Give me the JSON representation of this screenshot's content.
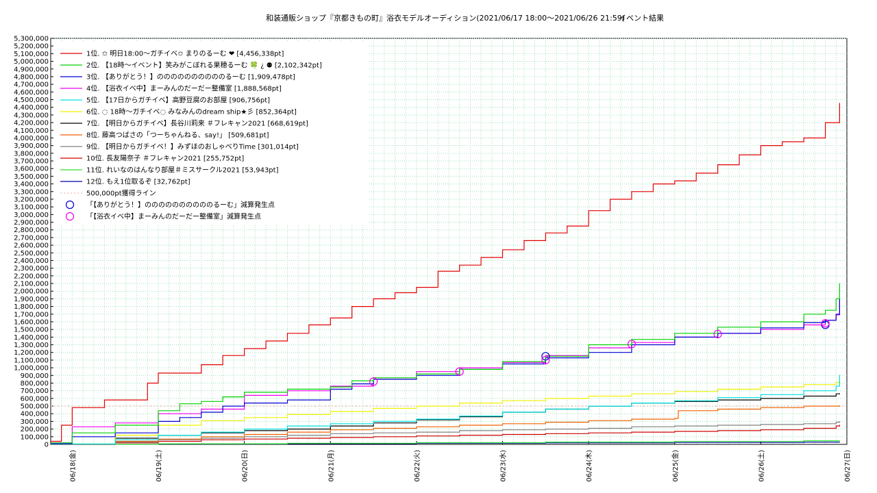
{
  "chart_data": {
    "type": "line",
    "title": "和装通販ショップ『京都きもの町』浴衣モデルオーディション(2021/06/17 18:00～2021/06/26 21:59)",
    "subtitle": "イベント結果",
    "xlabel": "",
    "ylabel": "",
    "ylim": [
      0,
      5300000
    ],
    "yticks": [
      "0",
      "100,000",
      "200,000",
      "300,000",
      "400,000",
      "500,000",
      "600,000",
      "700,000",
      "800,000",
      "900,000",
      "1,000,000",
      "1,100,000",
      "1,200,000",
      "1,300,000",
      "1,400,000",
      "1,500,000",
      "1,600,000",
      "1,700,000",
      "1,800,000",
      "1,900,000",
      "2,000,000",
      "2,100,000",
      "2,200,000",
      "2,300,000",
      "2,400,000",
      "2,500,000",
      "2,600,000",
      "2,700,000",
      "2,800,000",
      "2,900,000",
      "3,000,000",
      "3,100,000",
      "3,200,000",
      "3,300,000",
      "3,400,000",
      "3,500,000",
      "3,600,000",
      "3,700,000",
      "3,800,000",
      "3,900,000",
      "4,000,000",
      "4,100,000",
      "4,200,000",
      "4,300,000",
      "4,400,000",
      "4,500,000",
      "4,600,000",
      "4,700,000",
      "4,800,000",
      "4,900,000",
      "5,000,000",
      "5,100,000",
      "5,200,000",
      "5,300,000"
    ],
    "xlim": [
      "2021-06-17 18:00",
      "2021-06-27 00:00"
    ],
    "xticks": [
      "06/18(金)",
      "06/19(土)",
      "06/20(日)",
      "06/21(月)",
      "06/22(火)",
      "06/23(水)",
      "06/24(木)",
      "06/25(金)",
      "06/26(土)",
      "06/27(日)"
    ],
    "grid": true,
    "legend_position": "top-left",
    "series": [
      {
        "name": "1位. ✩ 明日18:00～ガチイベ✩ まりのるーむ ❤ [4,456,338pt]",
        "color": "#e00000",
        "x": [
          "06/17 18:00",
          "06/17 21:00",
          "06/18 00:00",
          "06/18 06:00",
          "06/18 09:00",
          "06/18 15:00",
          "06/18 21:00",
          "06/19 00:00",
          "06/19 06:00",
          "06/19 12:00",
          "06/19 18:00",
          "06/20 00:00",
          "06/20 06:00",
          "06/20 12:00",
          "06/20 18:00",
          "06/21 00:00",
          "06/21 06:00",
          "06/21 12:00",
          "06/21 18:00",
          "06/22 00:00",
          "06/22 06:00",
          "06/22 12:00",
          "06/22 18:00",
          "06/23 00:00",
          "06/23 06:00",
          "06/23 12:00",
          "06/23 18:00",
          "06/24 00:00",
          "06/24 06:00",
          "06/24 12:00",
          "06/24 18:00",
          "06/25 00:00",
          "06/25 06:00",
          "06/25 12:00",
          "06/25 18:00",
          "06/26 00:00",
          "06/26 06:00",
          "06/26 12:00",
          "06/26 18:00",
          "06/26 21:59"
        ],
        "y": [
          40000,
          250000,
          480000,
          480000,
          580000,
          580000,
          800000,
          930000,
          930000,
          1040000,
          1160000,
          1250000,
          1350000,
          1450000,
          1560000,
          1650000,
          1800000,
          1900000,
          1980000,
          2050000,
          2260000,
          2340000,
          2440000,
          2540000,
          2660000,
          2760000,
          2850000,
          3050000,
          3200000,
          3300000,
          3400000,
          3440000,
          3540000,
          3650000,
          3780000,
          3900000,
          3950000,
          4000000,
          4200000,
          4456338
        ]
      },
      {
        "name": "2位. 【18時～イベント】笑みがこぼれる果穂るーむ 🍀 ¿ ⚉ [2,102,342pt]",
        "color": "#00d000",
        "x": [
          "06/17 18:00",
          "06/18 00:00",
          "06/18 12:00",
          "06/19 00:00",
          "06/19 06:00",
          "06/19 12:00",
          "06/19 18:00",
          "06/20 00:00",
          "06/20 12:00",
          "06/21 00:00",
          "06/21 06:00",
          "06/21 12:00",
          "06/22 00:00",
          "06/22 12:00",
          "06/23 00:00",
          "06/23 12:00",
          "06/24 00:00",
          "06/24 12:00",
          "06/25 00:00",
          "06/25 12:00",
          "06/26 00:00",
          "06/26 12:00",
          "06/26 18:00",
          "06/26 21:00",
          "06/26 21:59"
        ],
        "y": [
          20000,
          150000,
          250000,
          440000,
          530000,
          560000,
          620000,
          680000,
          720000,
          750000,
          830000,
          870000,
          920000,
          980000,
          1080000,
          1150000,
          1300000,
          1370000,
          1450000,
          1530000,
          1600000,
          1700000,
          1750000,
          1900000,
          2102342
        ]
      },
      {
        "name": "3位. 【ありがとう！】ののののののののののるーむ [1,909,478pt]",
        "color": "#0000d0",
        "x": [
          "06/17 18:00",
          "06/18 00:00",
          "06/18 12:00",
          "06/19 00:00",
          "06/19 06:00",
          "06/19 12:00",
          "06/19 18:00",
          "06/20 00:00",
          "06/20 12:00",
          "06/21 00:00",
          "06/21 06:00",
          "06/21 12:00",
          "06/22 00:00",
          "06/22 12:00",
          "06/23 00:00",
          "06/23 12:00",
          "06/24 00:00",
          "06/24 12:00",
          "06/25 00:00",
          "06/25 12:00",
          "06/26 00:00",
          "06/26 12:00",
          "06/26 18:00",
          "06/26 21:00",
          "06/26 21:59"
        ],
        "y": [
          10000,
          100000,
          150000,
          300000,
          350000,
          420000,
          500000,
          540000,
          580000,
          720000,
          790000,
          850000,
          900000,
          980000,
          1050000,
          1130000,
          1200000,
          1300000,
          1400000,
          1450000,
          1520000,
          1590000,
          1620000,
          1700000,
          1909478
        ]
      },
      {
        "name": "4位. 【浴衣イベ中】まーみんのだーだー整備室 [1,888,568pt]",
        "color": "#ee00ee",
        "x": [
          "06/17 18:00",
          "06/18 00:00",
          "06/18 12:00",
          "06/19 00:00",
          "06/19 12:00",
          "06/20 00:00",
          "06/20 12:00",
          "06/21 00:00",
          "06/21 12:00",
          "06/22 00:00",
          "06/22 12:00",
          "06/23 00:00",
          "06/23 12:00",
          "06/24 00:00",
          "06/24 12:00",
          "06/25 00:00",
          "06/25 12:00",
          "06/26 00:00",
          "06/26 12:00",
          "06/26 18:00",
          "06/26 21:00",
          "06/26 21:59"
        ],
        "y": [
          20000,
          230000,
          280000,
          400000,
          460000,
          640000,
          700000,
          760000,
          850000,
          950000,
          1000000,
          1070000,
          1160000,
          1260000,
          1330000,
          1400000,
          1450000,
          1500000,
          1560000,
          1620000,
          1690000,
          1888568
        ]
      },
      {
        "name": "5位. 【17日からガチイベ】高野豆腐のお部屋 [906,756pt]",
        "color": "#00e0e0",
        "x": [
          "06/17 18:00",
          "06/18 12:00",
          "06/19 00:00",
          "06/19 12:00",
          "06/20 00:00",
          "06/20 12:00",
          "06/21 00:00",
          "06/21 12:00",
          "06/22 00:00",
          "06/22 12:00",
          "06/23 00:00",
          "06/23 12:00",
          "06/24 00:00",
          "06/24 12:00",
          "06/25 00:00",
          "06/25 12:00",
          "06/26 00:00",
          "06/26 12:00",
          "06/26 21:00",
          "06/26 21:59"
        ],
        "y": [
          5000,
          60000,
          120000,
          160000,
          200000,
          240000,
          270000,
          300000,
          330000,
          370000,
          420000,
          460000,
          500000,
          540000,
          570000,
          610000,
          650000,
          700000,
          760000,
          906756
        ]
      },
      {
        "name": "6位. ◌ 18時～ガチイベ◌ みなみんのdream ship★彡 [852,364pt]",
        "color": "#f0f000",
        "x": [
          "06/17 18:00",
          "06/18 12:00",
          "06/19 00:00",
          "06/19 12:00",
          "06/20 00:00",
          "06/20 12:00",
          "06/21 00:00",
          "06/21 12:00",
          "06/22 00:00",
          "06/22 12:00",
          "06/23 00:00",
          "06/23 12:00",
          "06/24 00:00",
          "06/24 12:00",
          "06/25 00:00",
          "06/25 12:00",
          "06/26 00:00",
          "06/26 12:00",
          "06/26 21:00",
          "06/26 21:59"
        ],
        "y": [
          5000,
          120000,
          250000,
          310000,
          350000,
          390000,
          430000,
          470000,
          500000,
          540000,
          570000,
          600000,
          630000,
          660000,
          690000,
          720000,
          750000,
          780000,
          810000,
          852364
        ]
      },
      {
        "name": "7位. 【明日からガチイベ】長谷川莉来 ＃フレキャン2021 [668,619pt]",
        "color": "#000000",
        "x": [
          "06/17 18:00",
          "06/18 12:00",
          "06/19 00:00",
          "06/19 12:00",
          "06/20 00:00",
          "06/20 12:00",
          "06/21 00:00",
          "06/21 12:00",
          "06/22 00:00",
          "06/22 12:00",
          "06/23 00:00",
          "06/23 12:00",
          "06/24 00:00",
          "06/24 12:00",
          "06/25 00:00",
          "06/25 12:00",
          "06/26 00:00",
          "06/26 12:00",
          "06/26 21:00",
          "06/26 21:59"
        ],
        "y": [
          2000,
          80000,
          120000,
          150000,
          180000,
          200000,
          240000,
          280000,
          320000,
          360000,
          420000,
          460000,
          500000,
          540000,
          560000,
          580000,
          600000,
          630000,
          660000,
          668619
        ]
      },
      {
        "name": "8位. 藤高つばさの「つーちゃんねる、say!」 [509,681pt]",
        "color": "#f06000",
        "x": [
          "06/17 18:00",
          "06/18 12:00",
          "06/19 00:00",
          "06/19 12:00",
          "06/20 00:00",
          "06/20 12:00",
          "06/21 00:00",
          "06/21 12:00",
          "06/22 00:00",
          "06/22 12:00",
          "06/23 00:00",
          "06/23 12:00",
          "06/24 00:00",
          "06/24 12:00",
          "06/25 00:00",
          "06/25 01:00",
          "06/25 12:00",
          "06/26 00:00",
          "06/26 12:00",
          "06/26 21:59"
        ],
        "y": [
          2000,
          40000,
          70000,
          100000,
          130000,
          160000,
          190000,
          210000,
          230000,
          250000,
          270000,
          290000,
          310000,
          330000,
          340000,
          440000,
          460000,
          480000,
          500000,
          509681
        ]
      },
      {
        "name": "9位. 【明日からガチイベ！】みずほのおしゃべりTime [301,014pt]",
        "color": "#808080",
        "x": [
          "06/17 18:00",
          "06/18 12:00",
          "06/19 00:00",
          "06/19 12:00",
          "06/20 00:00",
          "06/20 12:00",
          "06/21 00:00",
          "06/21 12:00",
          "06/22 00:00",
          "06/22 12:00",
          "06/23 00:00",
          "06/23 12:00",
          "06/24 00:00",
          "06/24 12:00",
          "06/25 00:00",
          "06/25 12:00",
          "06/26 00:00",
          "06/26 12:00",
          "06/26 21:00",
          "06/26 21:59"
        ],
        "y": [
          2000,
          30000,
          60000,
          80000,
          100000,
          120000,
          140000,
          150000,
          160000,
          180000,
          190000,
          200000,
          210000,
          230000,
          240000,
          250000,
          260000,
          270000,
          290000,
          301014
        ]
      },
      {
        "name": "10位. 長友陽奈子 ＃フレキャン2021 [255,752pt]",
        "color": "#d00000",
        "x": [
          "06/17 18:00",
          "06/18 12:00",
          "06/19 00:00",
          "06/19 12:00",
          "06/20 00:00",
          "06/20 12:00",
          "06/21 00:00",
          "06/21 12:00",
          "06/22 00:00",
          "06/22 12:00",
          "06/23 00:00",
          "06/23 12:00",
          "06/24 00:00",
          "06/24 12:00",
          "06/25 00:00",
          "06/25 12:00",
          "06/26 00:00",
          "06/26 12:00",
          "06/26 21:00",
          "06/26 21:59"
        ],
        "y": [
          1000,
          20000,
          40000,
          60000,
          70000,
          80000,
          90000,
          100000,
          110000,
          120000,
          130000,
          140000,
          150000,
          160000,
          170000,
          180000,
          190000,
          210000,
          240000,
          255752
        ]
      },
      {
        "name": "11位. れいなのはんなり部屋＃ミスサークル2021 [53,943pt]",
        "color": "#30e030",
        "x": [
          "06/17 18:00",
          "06/19 00:00",
          "06/20 12:00",
          "06/22 00:00",
          "06/23 12:00",
          "06/25 00:00",
          "06/26 12:00",
          "06/26 21:59"
        ],
        "y": [
          1000,
          8000,
          15000,
          22000,
          30000,
          38000,
          48000,
          53943
        ]
      },
      {
        "name": "12位. もえ1位取るぞ [32,762pt]",
        "color": "#0000a0",
        "x": [
          "06/17 18:00",
          "06/19 00:00",
          "06/20 12:00",
          "06/22 00:00",
          "06/23 12:00",
          "06/25 00:00",
          "06/26 12:00",
          "06/26 21:59"
        ],
        "y": [
          500,
          5000,
          10000,
          15000,
          20000,
          25000,
          30000,
          32762
        ]
      }
    ],
    "reference_line": {
      "name": "500,000pt獲得ライン",
      "value": 500000,
      "color": "#f0a0a0"
    },
    "markers": [
      {
        "name": "「【ありがとう！】ののののののののののるーむ」減算発生点",
        "color": "#0000d0",
        "x": [
          "06/23 12:00",
          "06/26 18:00"
        ],
        "y": [
          1150000,
          1560000
        ]
      },
      {
        "name": "「【浴衣イベ中】まーみんのだーだー整備室」減算発生点",
        "color": "#ee00ee",
        "x": [
          "06/21 12:00",
          "06/22 12:00",
          "06/23 12:00",
          "06/24 12:00",
          "06/25 12:00",
          "06/26 18:00"
        ],
        "y": [
          820000,
          950000,
          1100000,
          1310000,
          1440000,
          1580000
        ]
      }
    ]
  }
}
